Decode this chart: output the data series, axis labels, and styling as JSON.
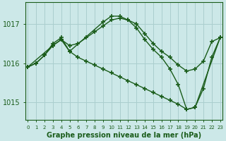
{
  "title": "Graphe pression niveau de la mer (hPa)",
  "yticks": [
    1015,
    1016,
    1017
  ],
  "ylim": [
    1014.55,
    1017.55
  ],
  "xlim": [
    -0.3,
    23.3
  ],
  "bg_color": "#cce8e8",
  "line_color": "#1a5c1a",
  "grid_color": "#aacece",
  "series1_x": [
    0,
    1,
    2,
    3,
    4,
    5,
    6,
    7,
    8,
    9,
    10,
    11,
    12,
    13,
    14,
    15,
    16,
    17,
    18,
    19,
    20,
    21,
    22,
    23
  ],
  "series1_y": [
    1015.9,
    1016.0,
    1016.2,
    1016.45,
    1016.6,
    1016.45,
    1016.5,
    1016.65,
    1016.8,
    1016.95,
    1017.1,
    1017.15,
    1017.1,
    1017.0,
    1016.75,
    1016.5,
    1016.3,
    1016.15,
    1015.95,
    1015.8,
    1015.85,
    1016.05,
    1016.55,
    1016.65
  ],
  "series2_x": [
    0,
    1,
    2,
    3,
    4,
    5,
    9,
    10,
    11,
    12,
    13,
    14,
    15,
    16,
    17,
    18,
    19,
    20,
    21,
    22,
    23
  ],
  "series2_y": [
    1015.9,
    1016.0,
    1016.2,
    1016.5,
    1016.65,
    1016.3,
    1017.05,
    1017.2,
    1017.2,
    1017.1,
    1016.9,
    1016.6,
    1016.35,
    1016.15,
    1015.85,
    1015.45,
    1014.82,
    1014.87,
    1015.35,
    1016.15,
    1016.65
  ],
  "series3_x": [
    0,
    3,
    4,
    5,
    6,
    7,
    8,
    9,
    10,
    11,
    12,
    13,
    14,
    15,
    16,
    17,
    18,
    19,
    20,
    23
  ],
  "series3_y": [
    1015.9,
    1016.45,
    1016.6,
    1016.3,
    1016.15,
    1016.05,
    1015.95,
    1015.85,
    1015.75,
    1015.65,
    1015.55,
    1015.45,
    1015.35,
    1015.25,
    1015.15,
    1015.05,
    1014.95,
    1014.82,
    1014.87,
    1016.65
  ]
}
